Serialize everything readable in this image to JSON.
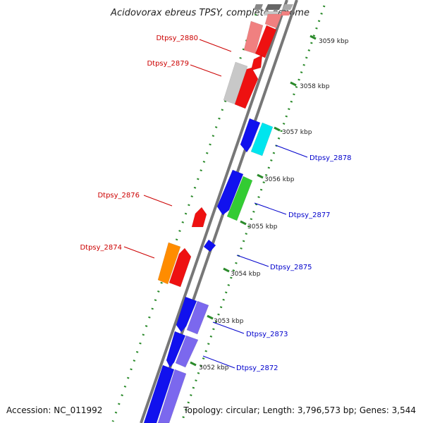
{
  "title": "Acidovorax ebreus TPSY, complete genome",
  "footer": {
    "accession": "Accession: NC_011992",
    "topology": "Topology: circular; Length: 3,796,573 bp; Genes: 3,544"
  },
  "colors": {
    "left_labels": "#cc0000",
    "right_labels": "#0000cc",
    "kbp_ticks": "#2a8a2a",
    "backbone": "#777777"
  },
  "kbp_ticks": [
    "3059 kbp",
    "3058 kbp",
    "3057 kbp",
    "3056 kbp",
    "3055 kbp",
    "3054 kbp",
    "3053 kbp",
    "3052 kbp"
  ],
  "gene_labels_left": [
    "Dtpsy_2880",
    "Dtpsy_2879",
    "Dtpsy_2876",
    "Dtpsy_2874"
  ],
  "gene_labels_right": [
    "Dtpsy_2878",
    "Dtpsy_2877",
    "Dtpsy_2875",
    "Dtpsy_2873",
    "Dtpsy_2872"
  ],
  "genes": [
    {
      "name": "gene-2880-shadow",
      "color": "#f08080"
    },
    {
      "name": "gene-2880",
      "color": "#ee1111"
    },
    {
      "name": "gene-2879-shadow",
      "color": "#c8c8c8"
    },
    {
      "name": "gene-2879",
      "color": "#ee1111"
    },
    {
      "name": "gene-2878-left",
      "color": "#1111ee"
    },
    {
      "name": "gene-2878",
      "color": "#00e5ee"
    },
    {
      "name": "gene-2877-left",
      "color": "#1111ee"
    },
    {
      "name": "gene-2877",
      "color": "#33cc33"
    },
    {
      "name": "gene-2876",
      "color": "#ee1111"
    },
    {
      "name": "gene-2875",
      "color": "#1111ee"
    },
    {
      "name": "gene-2874",
      "color": "#ff8c00"
    },
    {
      "name": "gene-2874-partner",
      "color": "#ee1111"
    },
    {
      "name": "gene-2873-left",
      "color": "#1111ee"
    },
    {
      "name": "gene-2873",
      "color": "#7b68ee"
    },
    {
      "name": "gene-2872-left",
      "color": "#1111ee"
    },
    {
      "name": "gene-2872",
      "color": "#7b68ee"
    }
  ]
}
